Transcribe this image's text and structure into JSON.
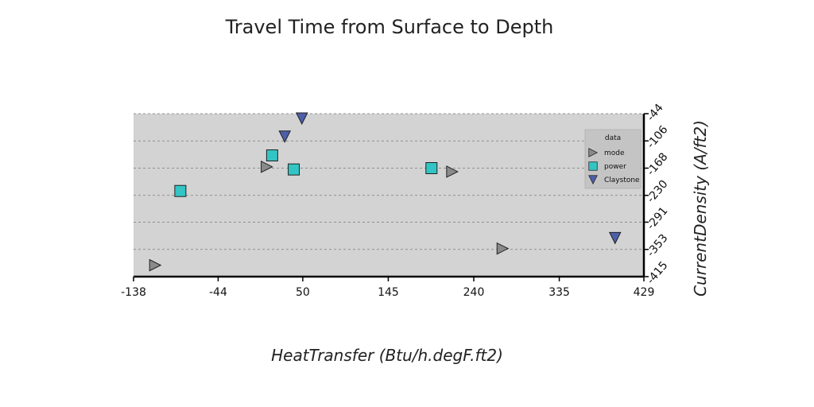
{
  "chart_data": {
    "type": "scatter",
    "title": "Travel Time from Surface to Depth",
    "xlabel": "HeatTransfer (Btu/h.degF.ft2)",
    "ylabel": "CurrentDensity (A/ft2)",
    "xlim": [
      -138,
      429
    ],
    "ylim": [
      -415,
      -44
    ],
    "y_axis_side": "right",
    "grid": "horizontal dashed",
    "xticks": [
      "-138",
      "-44",
      "50",
      "145",
      "240",
      "335",
      "429"
    ],
    "xtick_values": [
      -138,
      -44,
      50,
      145,
      240,
      335,
      429
    ],
    "yticks": [
      "-44",
      "-106",
      "-168",
      "-230",
      "-291",
      "-353",
      "-415"
    ],
    "ytick_values": [
      -44,
      -106,
      -168,
      -230,
      -291,
      -353,
      -415
    ],
    "legend": {
      "title": "data",
      "placement": "top-right"
    },
    "series": [
      {
        "name": "mode",
        "marker": "triangle-right",
        "color": "#8a8a8a",
        "x": [
          -114,
          10,
          216,
          272
        ],
        "y": [
          -389,
          -165,
          -176,
          -351
        ]
      },
      {
        "name": "power",
        "marker": "square",
        "color": "#33c4c4",
        "x": [
          -86,
          16,
          40,
          193
        ],
        "y": [
          -220,
          -139,
          -171,
          -168
        ]
      },
      {
        "name": "Claystone",
        "marker": "triangle-down",
        "color": "#4d5fa8",
        "x": [
          49,
          30,
          397
        ],
        "y": [
          -44,
          -96,
          -327
        ]
      }
    ]
  }
}
